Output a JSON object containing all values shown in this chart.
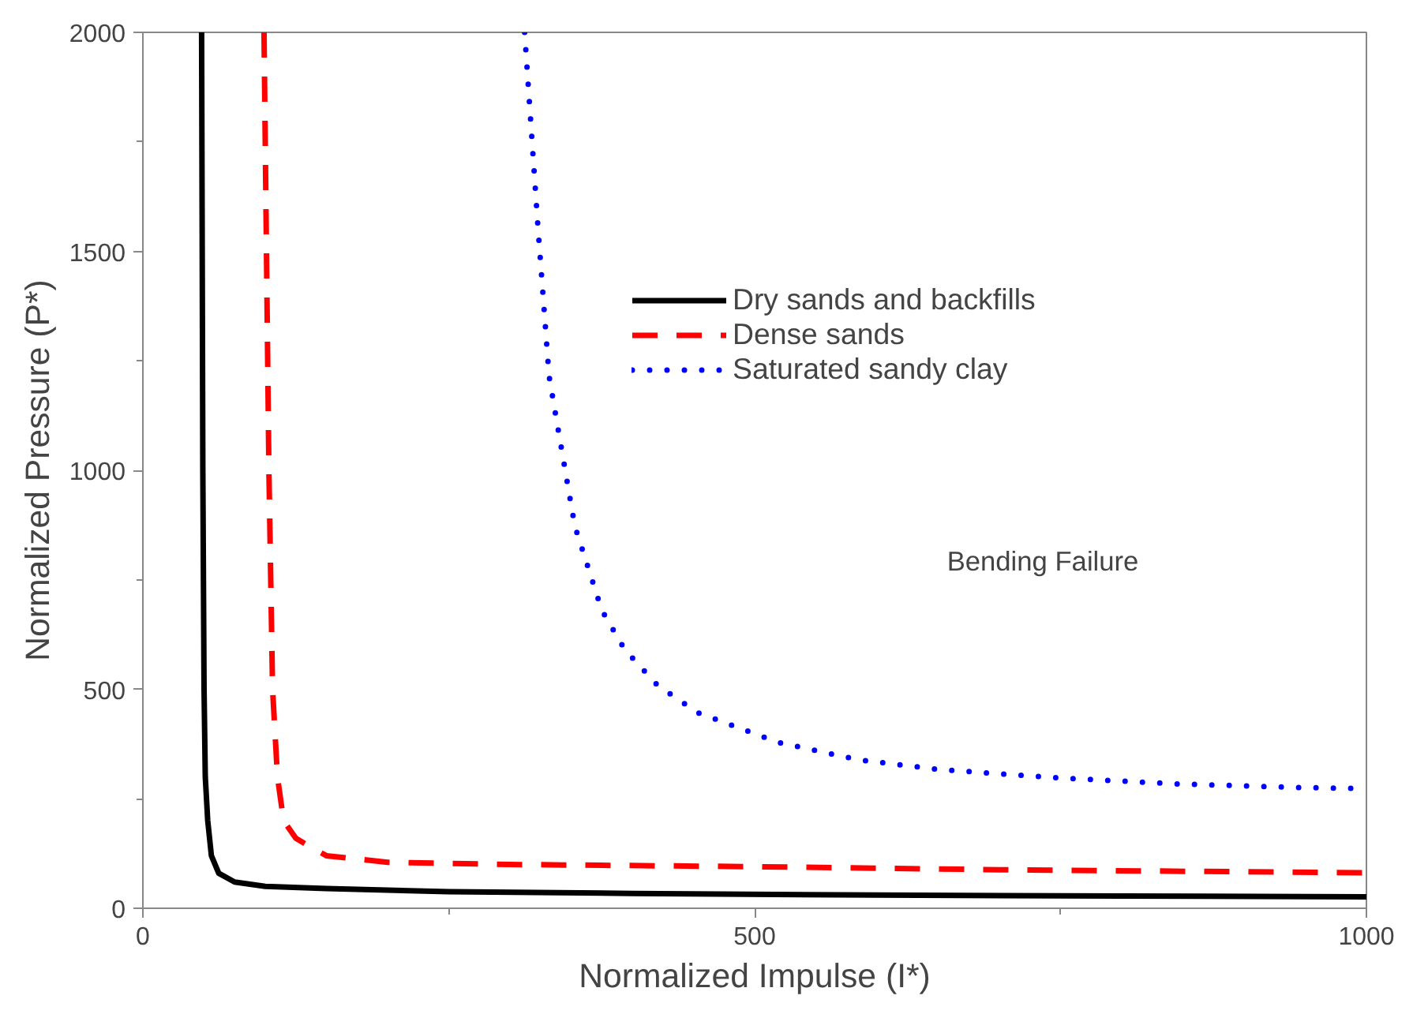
{
  "chart_data": {
    "type": "line",
    "xlabel": "Normalized Impulse (I*)",
    "ylabel": "Normalized Pressure (P*)",
    "annotations": [
      "Bending Failure"
    ],
    "xlim": [
      0,
      1000
    ],
    "ylim": [
      0,
      2000
    ],
    "xticks": [
      0,
      500,
      1000
    ],
    "yticks": [
      0,
      500,
      1000,
      1500,
      2000
    ],
    "grid": false,
    "legend": "top right",
    "series": [
      {
        "name": "Dry sands and backfills",
        "color": "#000000",
        "line_style": "solid",
        "x": [
          48,
          49,
          50,
          51,
          53,
          56,
          62,
          75,
          100,
          150,
          250,
          400,
          600,
          800,
          1000
        ],
        "values": [
          2000,
          1000,
          500,
          300,
          200,
          120,
          80,
          60,
          50,
          45,
          38,
          34,
          30,
          28,
          26
        ]
      },
      {
        "name": "Dense sands",
        "color": "#ff0000",
        "line_style": "dashed",
        "x": [
          99,
          101,
          103,
          106,
          110,
          115,
          125,
          137,
          150,
          200,
          300,
          500,
          700,
          1000
        ],
        "values": [
          2000,
          1500,
          1000,
          500,
          300,
          200,
          160,
          140,
          120,
          105,
          100,
          95,
          88,
          81
        ]
      },
      {
        "name": "Saturated sandy clay",
        "color": "#0000ff",
        "line_style": "dotted",
        "x": [
          312,
          323,
          332,
          338,
          353,
          375,
          394,
          421,
          454,
          519,
          585,
          650,
          746,
          844,
          942,
          1000
        ],
        "values": [
          2000,
          1551,
          1215,
          1116,
          873,
          681,
          590,
          508,
          446,
          379,
          339,
          317,
          298,
          284,
          276,
          273
        ]
      }
    ]
  }
}
